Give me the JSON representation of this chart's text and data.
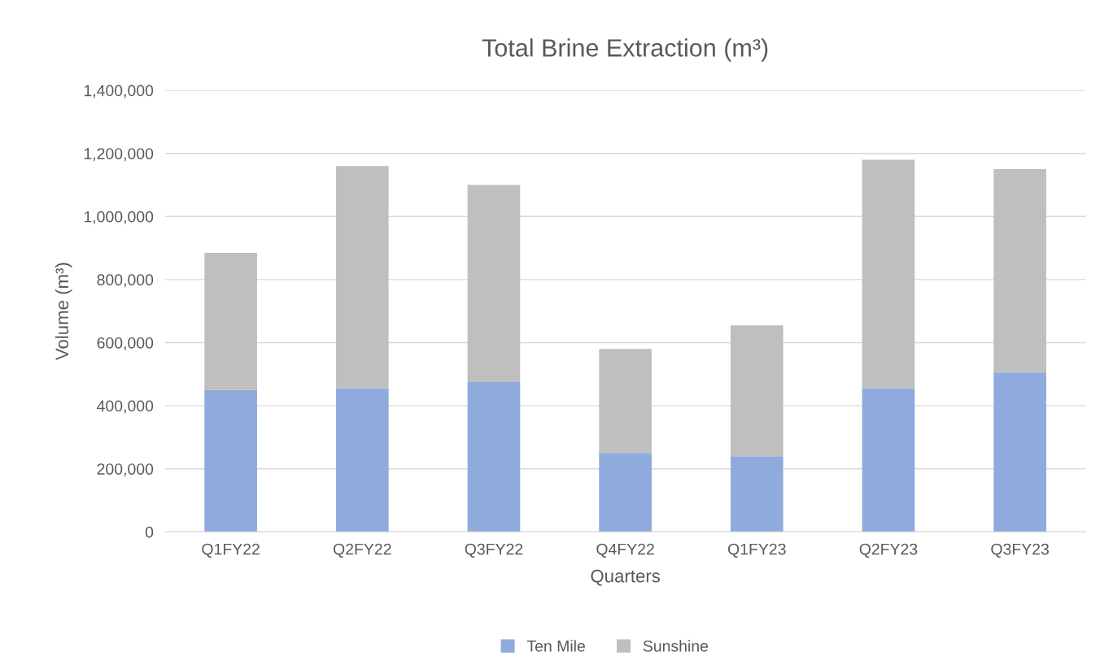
{
  "chart_data": {
    "type": "bar",
    "title": "Total Brine Extraction (m³)",
    "xlabel": "Quarters",
    "ylabel": "Volume (m³)",
    "categories": [
      "Q1FY22",
      "Q2FY22",
      "Q3FY22",
      "Q4FY22",
      "Q1FY23",
      "Q2FY23",
      "Q3FY23"
    ],
    "stacked": true,
    "series": [
      {
        "name": "Ten Mile",
        "color": "#8faadc",
        "values": [
          450000,
          455000,
          475000,
          250000,
          240000,
          455000,
          505000
        ]
      },
      {
        "name": "Sunshine",
        "color": "#bfbfbf",
        "values": [
          435000,
          705000,
          625000,
          330000,
          415000,
          725000,
          645000
        ]
      }
    ],
    "ylim": [
      0,
      1400000
    ],
    "yticks": [
      {
        "value": 0,
        "label": "0"
      },
      {
        "value": 200000,
        "label": "200,000"
      },
      {
        "value": 400000,
        "label": "400,000"
      },
      {
        "value": 600000,
        "label": "600,000"
      },
      {
        "value": 800000,
        "label": "800,000"
      },
      {
        "value": 1000000,
        "label": "1,000,000"
      },
      {
        "value": 1200000,
        "label": "1,200,000"
      },
      {
        "value": 1400000,
        "label": "1,400,000"
      }
    ],
    "grid": "y",
    "legend": "bottom"
  }
}
